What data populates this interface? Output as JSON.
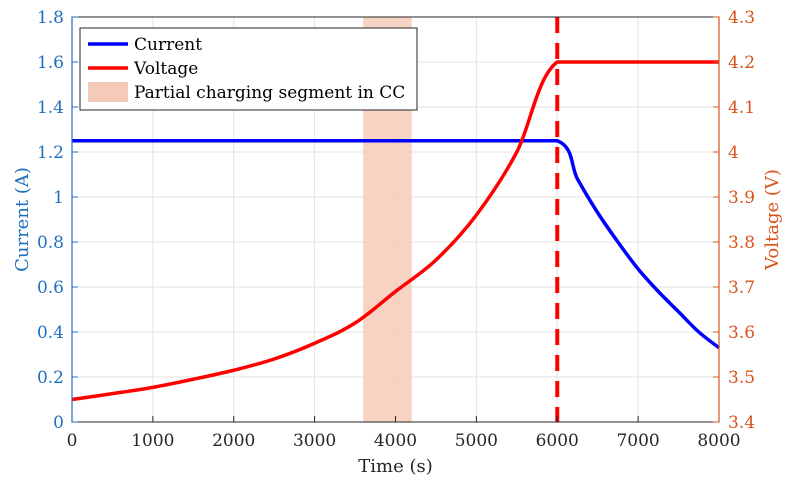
{
  "chart_data": {
    "type": "line",
    "title": "",
    "xlabel": "Time (s)",
    "ylabel_left": "Current (A)",
    "ylabel_right": "Voltage (V)",
    "xlim": [
      0,
      8000
    ],
    "ylim_left": [
      0,
      1.8
    ],
    "ylim_right": [
      3.4,
      4.3
    ],
    "x_ticks": [
      "0",
      "1000",
      "2000",
      "3000",
      "4000",
      "5000",
      "6000",
      "7000",
      "8000"
    ],
    "y_left_ticks": [
      "0",
      "0.2",
      "0.4",
      "0.6",
      "0.8",
      "1",
      "1.2",
      "1.4",
      "1.6",
      "1.8"
    ],
    "y_right_ticks": [
      "3.4",
      "3.5",
      "3.6",
      "3.7",
      "3.8",
      "3.9",
      "4",
      "4.1",
      "4.2",
      "4.3"
    ],
    "grid": true,
    "legend_position": "top-left",
    "series": [
      {
        "name": "Current",
        "axis": "left",
        "color": "#0000ff",
        "x": [
          0,
          1000,
          2000,
          3000,
          4000,
          5000,
          6000,
          6250,
          6500,
          6750,
          7000,
          7250,
          7500,
          7750,
          8000
        ],
        "y": [
          1.25,
          1.25,
          1.25,
          1.25,
          1.25,
          1.25,
          1.25,
          1.08,
          0.93,
          0.8,
          0.68,
          0.58,
          0.49,
          0.4,
          0.33
        ]
      },
      {
        "name": "Voltage",
        "axis": "right",
        "color": "#ff0000",
        "x": [
          0,
          500,
          1000,
          1500,
          2000,
          2500,
          3000,
          3500,
          4000,
          4500,
          5000,
          5500,
          6000,
          7000,
          8000
        ],
        "y": [
          3.45,
          3.463,
          3.477,
          3.495,
          3.515,
          3.54,
          3.575,
          3.62,
          3.69,
          3.76,
          3.86,
          4.0,
          4.2,
          4.2,
          4.2
        ]
      }
    ],
    "shaded_region": {
      "name": "Partial charging segment in CC",
      "x_range": [
        3600,
        4200
      ],
      "color": "#f4cbb8"
    },
    "vertical_marker": {
      "x": 6000,
      "color": "#ff0000",
      "style": "dashed"
    },
    "colors": {
      "left_axis": "#1f6fbf",
      "right_axis": "#d95319",
      "grid": "#e3e3e3"
    }
  }
}
